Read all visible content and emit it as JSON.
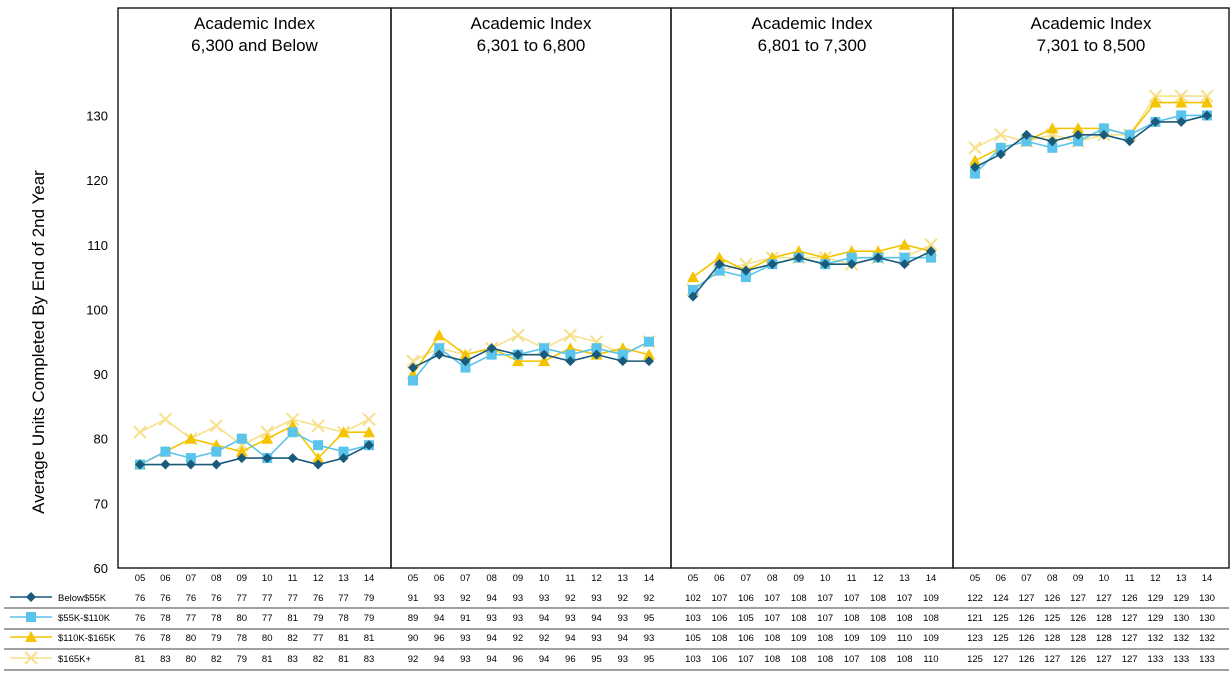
{
  "chart_data": {
    "type": "line",
    "ylabel": "Average Units Completed By End of 2nd Year",
    "ylim": [
      60,
      140
    ],
    "yticks": [
      60,
      70,
      80,
      90,
      100,
      110,
      120,
      130
    ],
    "x": [
      "05",
      "06",
      "07",
      "08",
      "09",
      "10",
      "11",
      "12",
      "13",
      "14"
    ],
    "series_style": [
      {
        "name": "Below $55K",
        "color": "#1a5a7a",
        "marker": "diamond"
      },
      {
        "name": "$55K-$110K",
        "color": "#5bc4ec",
        "marker": "square"
      },
      {
        "name": "$110K-$165K",
        "color": "#f5c400",
        "marker": "triangle"
      },
      {
        "name": "$165K+",
        "color": "#f6e08a",
        "marker": "x"
      }
    ],
    "panels": [
      {
        "title_line1": "Academic Index",
        "title_line2": "6,300 and Below",
        "series": [
          {
            "name": "Below $55K",
            "values": [
              76,
              76,
              76,
              76,
              77,
              77,
              77,
              76,
              77,
              79
            ]
          },
          {
            "name": "$55K-$110K",
            "values": [
              76,
              78,
              77,
              78,
              80,
              77,
              81,
              79,
              78,
              79
            ]
          },
          {
            "name": "$110K-$165K",
            "values": [
              76,
              78,
              80,
              79,
              78,
              80,
              82,
              77,
              81,
              81
            ]
          },
          {
            "name": "$165K+",
            "values": [
              81,
              83,
              80,
              82,
              79,
              81,
              83,
              82,
              81,
              83
            ]
          }
        ]
      },
      {
        "title_line1": "Academic Index",
        "title_line2": "6,301 to 6,800",
        "series": [
          {
            "name": "Below $55K",
            "values": [
              91,
              93,
              92,
              94,
              93,
              93,
              92,
              93,
              92,
              92
            ]
          },
          {
            "name": "$55K-$110K",
            "values": [
              89,
              94,
              91,
              93,
              93,
              94,
              93,
              94,
              93,
              95
            ]
          },
          {
            "name": "$110K-$165K",
            "values": [
              90,
              96,
              93,
              94,
              92,
              92,
              94,
              93,
              94,
              93
            ]
          },
          {
            "name": "$165K+",
            "values": [
              92,
              94,
              93,
              94,
              96,
              94,
              96,
              95,
              93,
              95
            ]
          }
        ]
      },
      {
        "title_line1": "Academic Index",
        "title_line2": "6,801 to 7,300",
        "series": [
          {
            "name": "Below $55K",
            "values": [
              102,
              107,
              106,
              107,
              108,
              107,
              107,
              108,
              107,
              109
            ]
          },
          {
            "name": "$55K-$110K",
            "values": [
              103,
              106,
              105,
              107,
              108,
              107,
              108,
              108,
              108,
              108
            ]
          },
          {
            "name": "$110K-$165K",
            "values": [
              105,
              108,
              106,
              108,
              109,
              108,
              109,
              109,
              110,
              109
            ]
          },
          {
            "name": "$165K+",
            "values": [
              103,
              106,
              107,
              108,
              108,
              108,
              107,
              108,
              108,
              110
            ]
          }
        ]
      },
      {
        "title_line1": "Academic Index",
        "title_line2": "7,301 to 8,500",
        "series": [
          {
            "name": "Below $55K",
            "values": [
              122,
              124,
              127,
              126,
              127,
              127,
              126,
              129,
              129,
              130
            ]
          },
          {
            "name": "$55K-$110K",
            "values": [
              121,
              125,
              126,
              125,
              126,
              128,
              127,
              129,
              130,
              130
            ]
          },
          {
            "name": "$110K-$165K",
            "values": [
              123,
              125,
              126,
              128,
              128,
              128,
              127,
              132,
              132,
              132
            ]
          },
          {
            "name": "$165K+",
            "values": [
              125,
              127,
              126,
              127,
              126,
              127,
              127,
              133,
              133,
              133
            ]
          }
        ]
      }
    ],
    "legend": [
      "Below$55K",
      "$55K-$110K",
      "$110K-$165K",
      "$165K+"
    ]
  }
}
